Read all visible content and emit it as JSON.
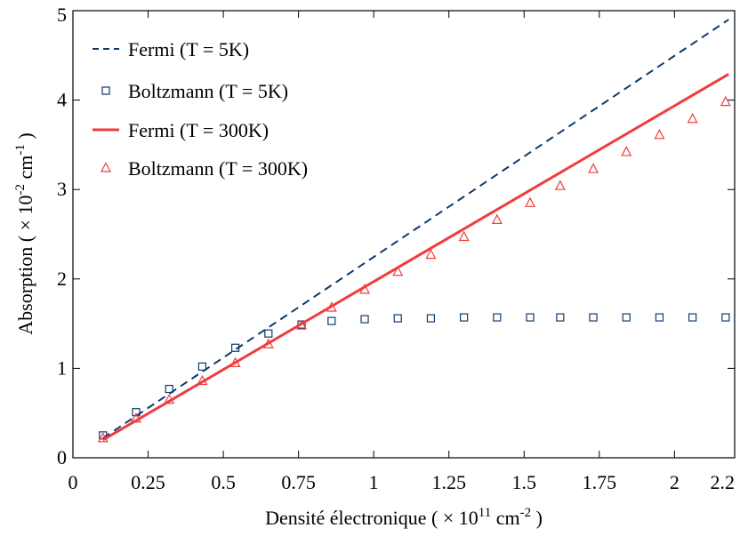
{
  "chart_data": {
    "type": "line",
    "xlabel": "Densité électronique ( × 10",
    "xlabel_exponent": "11",
    "xlabel_unit": " cm",
    "xlabel_unit_exponent": "-2",
    "xlabel_end": " )",
    "ylabel": "Absorption ( × 10",
    "ylabel_exponent": "-2",
    "ylabel_unit": " cm",
    "ylabel_unit_exponent": "-1",
    "ylabel_end": " )",
    "xlim": [
      0,
      2.2
    ],
    "ylim": [
      0,
      5
    ],
    "xticks": [
      0,
      0.25,
      0.5,
      0.75,
      1,
      1.25,
      1.5,
      1.75,
      2,
      2.2
    ],
    "xtick_labels": [
      "0",
      "0.25",
      "0.5",
      "0.75",
      "1",
      "1.25",
      "1.5",
      "1.75",
      "2",
      "2.2"
    ],
    "yticks": [
      0,
      1,
      2,
      3,
      4,
      5
    ],
    "ytick_labels": [
      "0",
      "1",
      "2",
      "3",
      "4",
      "5"
    ],
    "grid": false,
    "legend_position": "top-left",
    "series": [
      {
        "name": "Fermi (T = 5K)",
        "style": "dashed-line",
        "color": "#0d3a6e",
        "x": [
          0.1,
          2.18
        ],
        "y": [
          0.22,
          4.9
        ]
      },
      {
        "name": "Boltzmann (T = 5K)",
        "style": "square-markers",
        "color": "#0d3a6e",
        "x": [
          0.1,
          0.21,
          0.32,
          0.43,
          0.54,
          0.65,
          0.76,
          0.86,
          0.97,
          1.08,
          1.19,
          1.3,
          1.41,
          1.52,
          1.62,
          1.73,
          1.84,
          1.95,
          2.06,
          2.17
        ],
        "y": [
          0.25,
          0.51,
          0.77,
          1.02,
          1.23,
          1.39,
          1.49,
          1.53,
          1.55,
          1.56,
          1.56,
          1.57,
          1.57,
          1.57,
          1.57,
          1.57,
          1.57,
          1.57,
          1.57,
          1.57
        ]
      },
      {
        "name": "Fermi (T = 300K)",
        "style": "solid-line",
        "color": "#f03c3c",
        "x": [
          0.1,
          2.18
        ],
        "y": [
          0.2,
          4.29
        ]
      },
      {
        "name": "Boltzmann (T = 300K)",
        "style": "triangle-markers",
        "color": "#f03c3c",
        "x": [
          0.1,
          0.21,
          0.32,
          0.43,
          0.54,
          0.65,
          0.76,
          0.86,
          0.97,
          1.08,
          1.19,
          1.3,
          1.41,
          1.52,
          1.62,
          1.73,
          1.84,
          1.95,
          2.06,
          2.17
        ],
        "y": [
          0.22,
          0.44,
          0.65,
          0.86,
          1.06,
          1.27,
          1.48,
          1.68,
          1.88,
          2.08,
          2.27,
          2.47,
          2.66,
          2.85,
          3.04,
          3.23,
          3.42,
          3.61,
          3.79,
          3.98
        ]
      }
    ]
  }
}
